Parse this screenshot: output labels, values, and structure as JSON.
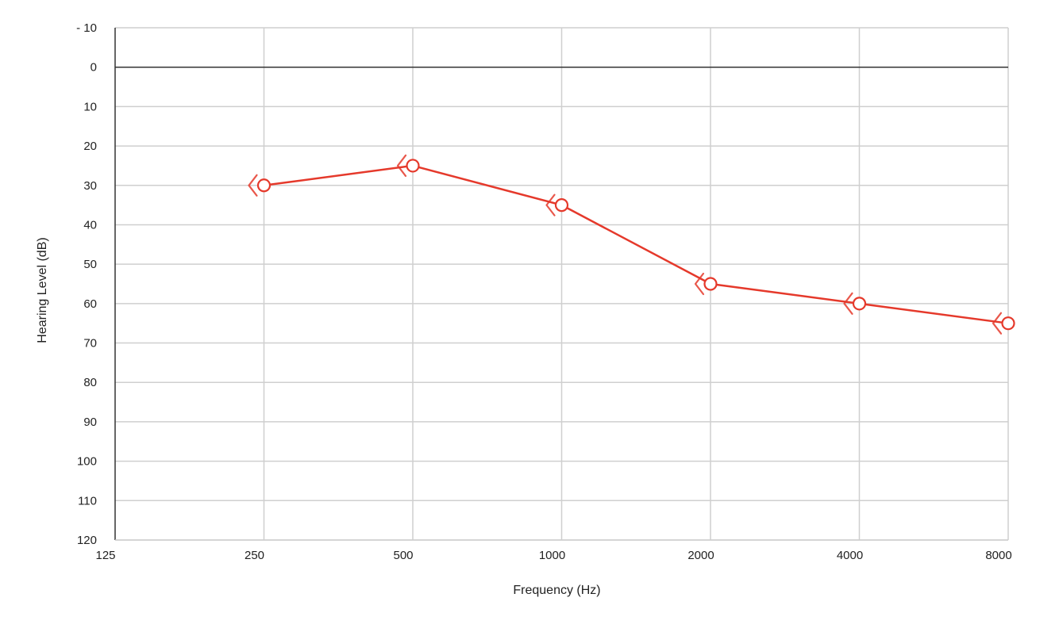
{
  "chart_data": {
    "type": "line",
    "xlabel": "Frequency (Hz)",
    "ylabel": "Hearing Level (dB)",
    "x_scale": "log2",
    "x_ticks": [
      125,
      250,
      500,
      1000,
      2000,
      4000,
      8000
    ],
    "y_ticks": [
      -10,
      0,
      10,
      20,
      30,
      40,
      50,
      60,
      70,
      80,
      90,
      100,
      110,
      120
    ],
    "ylim": [
      -10,
      120
    ],
    "y_inverted": true,
    "grid": true,
    "series": [
      {
        "x": [
          250,
          500,
          1000,
          2000,
          4000,
          8000
        ],
        "y": [
          30,
          25,
          35,
          55,
          60,
          65
        ],
        "marker": "open-circle",
        "secondary_marker": "open-chevron-left",
        "color": "#e5392b"
      }
    ]
  }
}
